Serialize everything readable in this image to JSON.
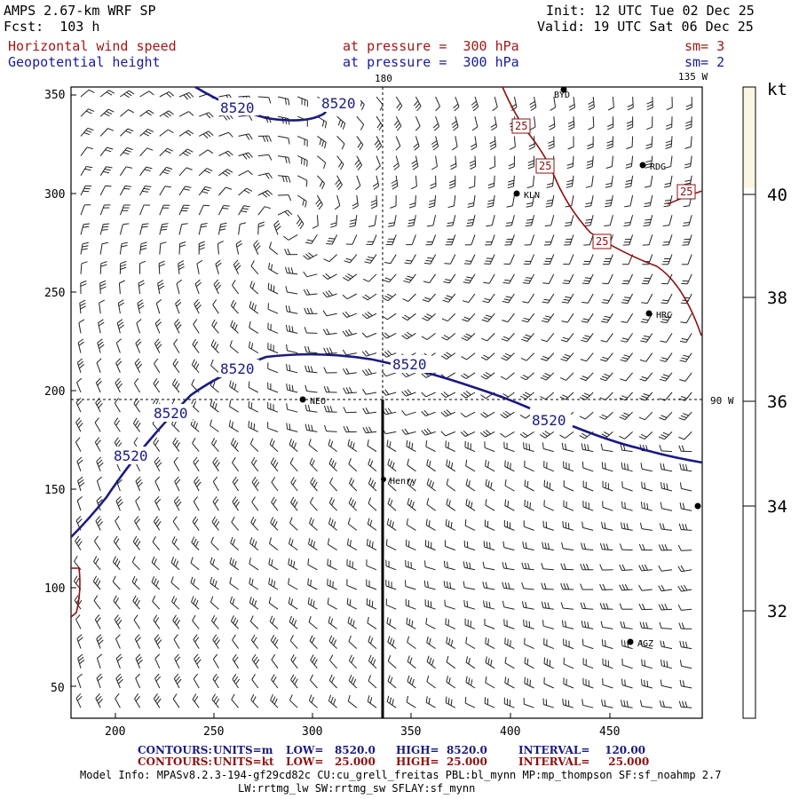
{
  "header": {
    "model": "AMPS 2.67-km WRF SP",
    "forecast": "Fcst:  103 h",
    "init": "Init: 12 UTC Tue 02 Dec 25",
    "valid": "Valid: 19 UTC Sat 06 Dec 25",
    "field1_name": "Horizontal wind speed",
    "field1_level": "at pressure =  300 hPa",
    "field1_sm": "sm= 3",
    "field2_name": "Geopotential height",
    "field2_level": "at pressure =  300 hPa",
    "field2_sm": "sm= 2"
  },
  "map": {
    "meridian_labels": [
      "180",
      "135 W",
      "90 W"
    ],
    "x_ticks": [
      "200",
      "250",
      "300",
      "350",
      "400",
      "450"
    ],
    "y_ticks": [
      "350",
      "300",
      "250",
      "200",
      "150",
      "100",
      "50"
    ],
    "contour_labels": [
      "8520",
      "8520",
      "8520",
      "8520",
      "8520",
      "8520",
      "8520"
    ],
    "isotach_labels": [
      "25",
      "25",
      "25",
      "25"
    ],
    "stations": [
      "BYD",
      "RDG",
      "KLN",
      "NEO",
      "HRC",
      "Henry",
      "AGZ"
    ],
    "contour_color": "#1a1a80",
    "isotach_color": "#8b1010"
  },
  "colorbar": {
    "unit": "kt",
    "ticks": [
      "40",
      "38",
      "36",
      "34",
      "32"
    ],
    "fill_color": "#fbf6e0"
  },
  "footer": {
    "row1_label": "CONTOURS:",
    "row1_units": "UNITS=m",
    "row1_low": "LOW=   8520.0",
    "row1_high": "HIGH=  8520.0",
    "row1_interval": "INTERVAL=    120.00",
    "row2_label": "CONTOURS:",
    "row2_units": "UNITS=kt",
    "row2_low": "LOW=   25.000",
    "row2_high": "HIGH=  25.000",
    "row2_interval": "INTERVAL=     25.000",
    "model_info_1": "Model Info: MPASv8.2.3-194-gf29cd82c CU:cu_grell_freitas PBL:bl_mynn MP:mp_thompson SF:sf_noahmp 2.7",
    "model_info_2": "LW:rrtmg_lw SW:rrtmg_sw SFLAY:sf_mynn"
  }
}
